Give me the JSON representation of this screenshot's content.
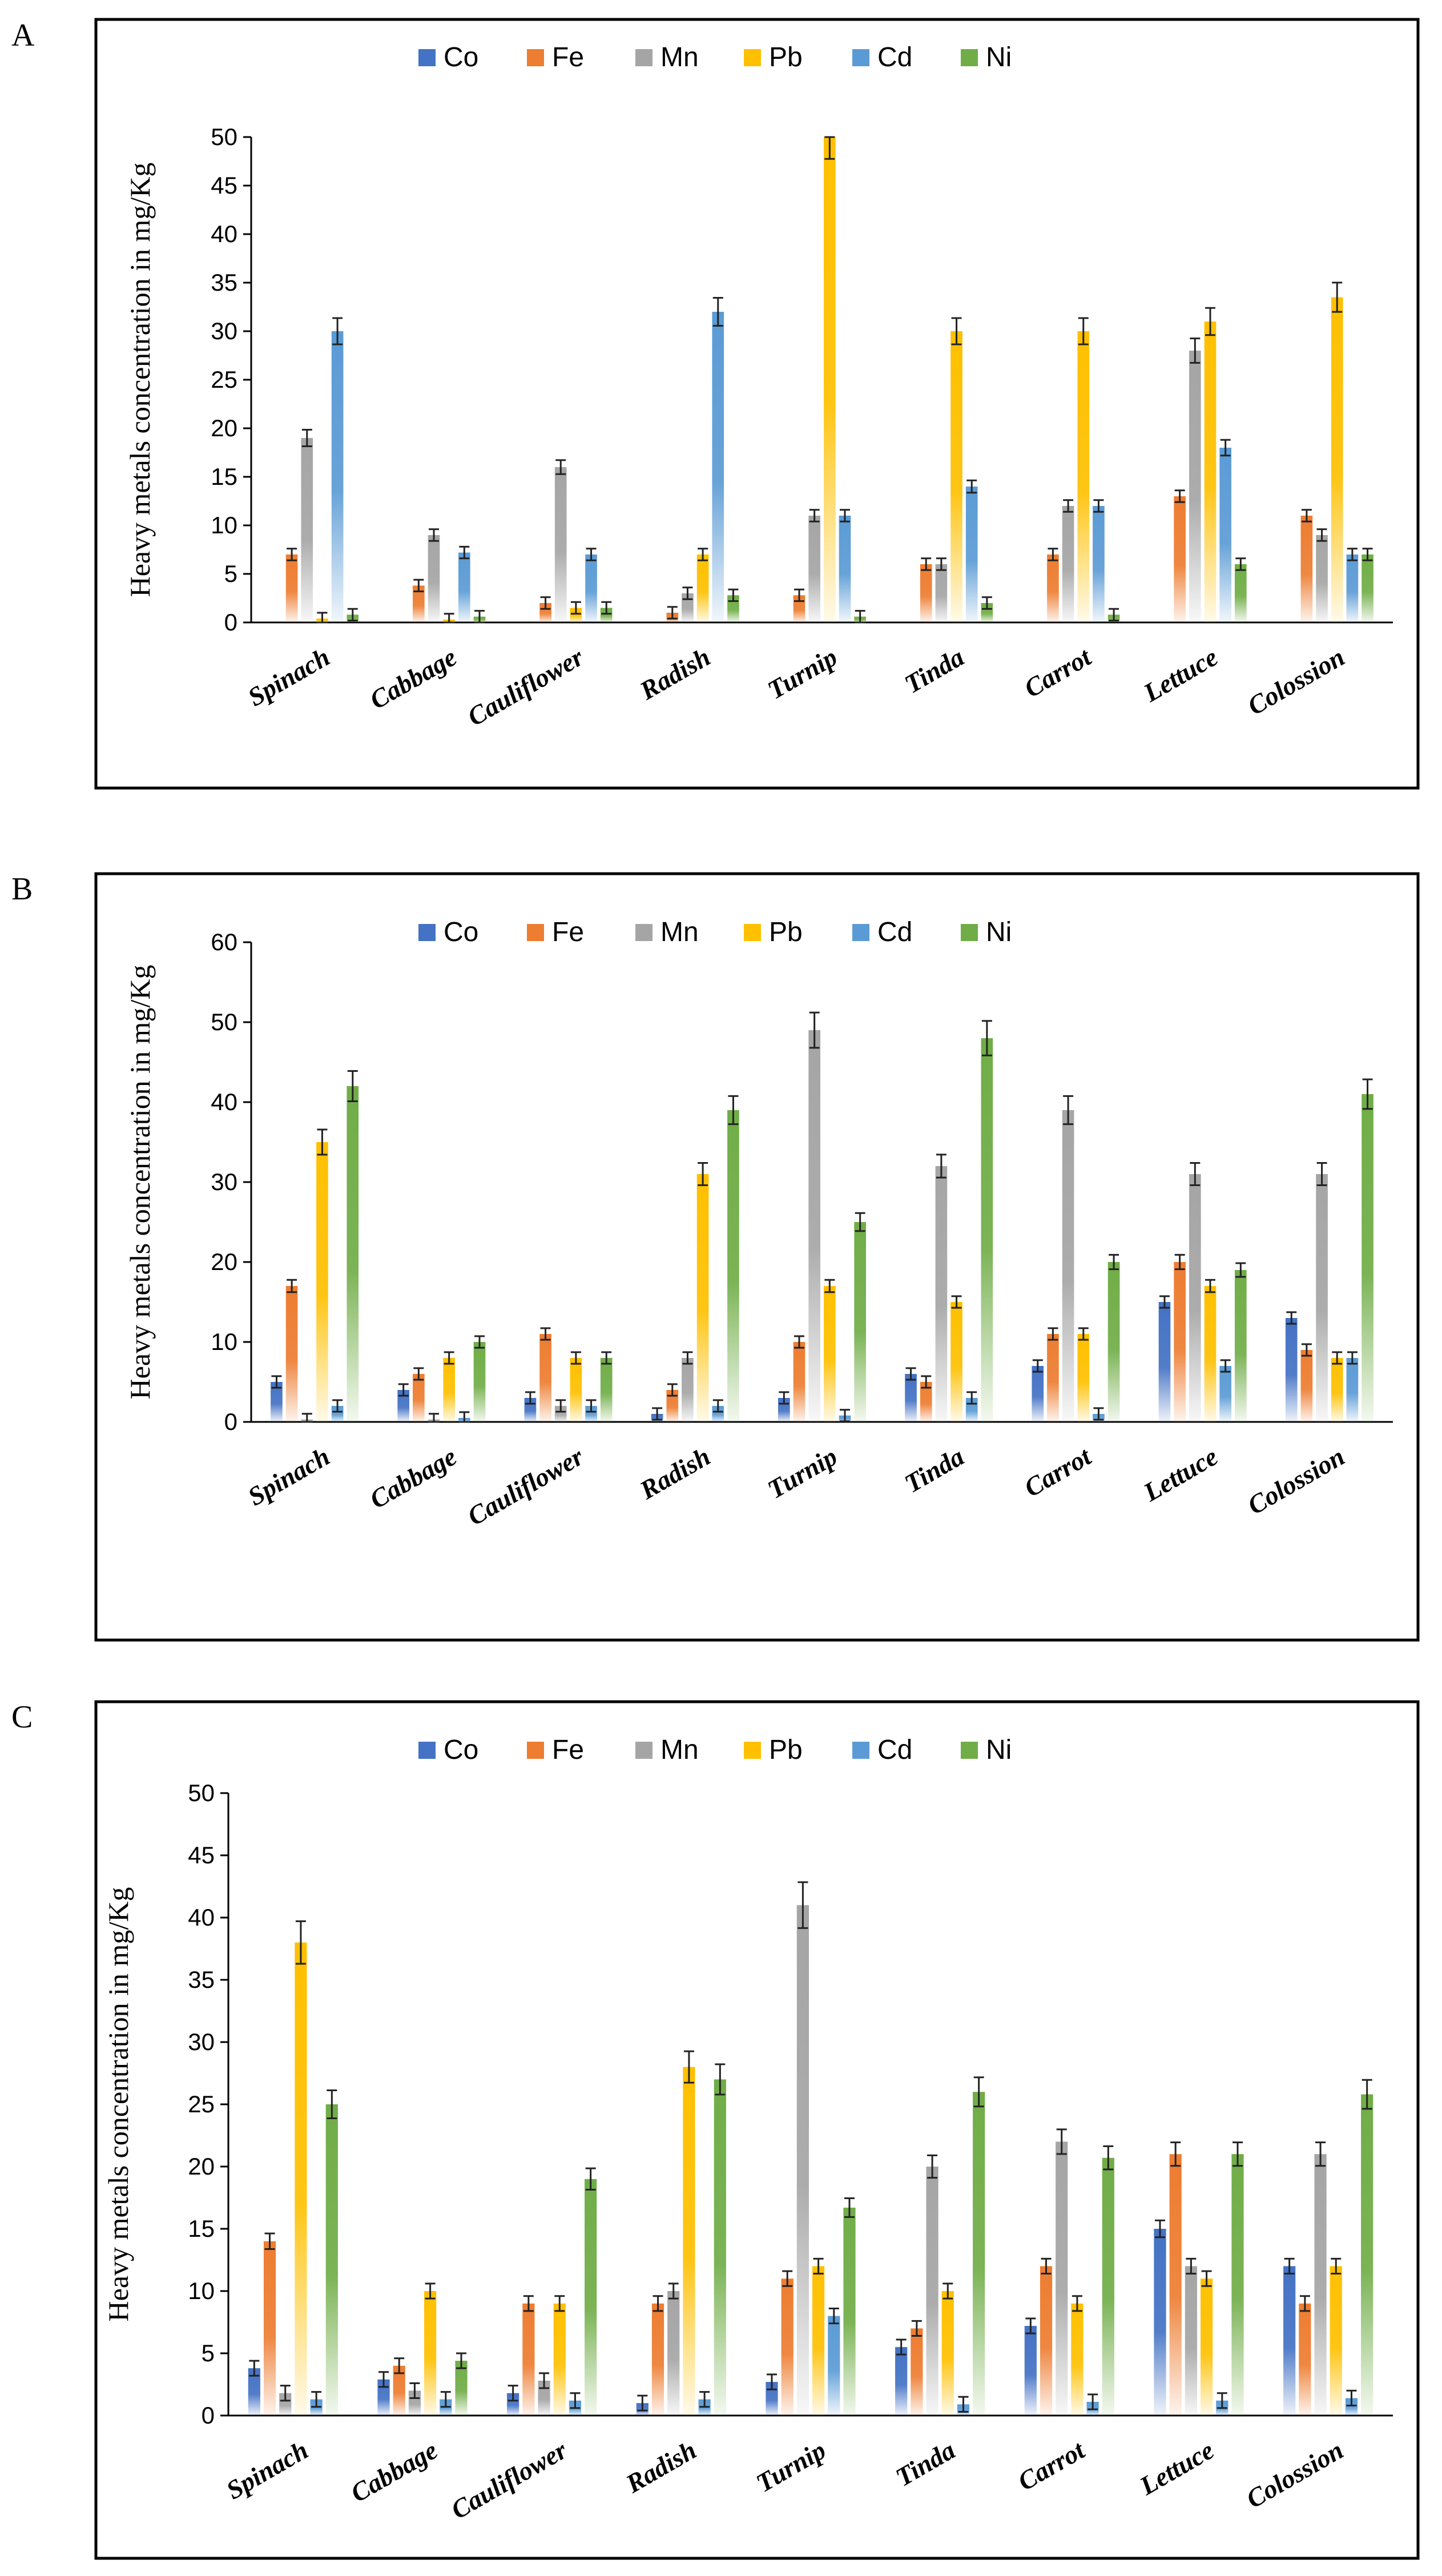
{
  "legend_colors": {
    "Co": "#4472c4",
    "Fe": "#ed7d31",
    "Mn": "#a5a5a5",
    "Pb": "#ffc000",
    "Cd": "#5b9bd5",
    "Ni": "#70ad47"
  },
  "chart_data": [
    {
      "panel": "A",
      "type": "bar",
      "ylabel": "Heavy metals concentration in mg/Kg",
      "ylim": [
        0,
        50
      ],
      "yticks": [
        "0",
        "5",
        "10",
        "15",
        "20",
        "25",
        "30",
        "35",
        "40",
        "45",
        "50"
      ],
      "categories": [
        "Spinach",
        "Cabbage",
        "Cauliflower",
        "Radish",
        "Turnip",
        "Tinda",
        "Carrot",
        "Lettuce",
        "Colossion"
      ],
      "series": [
        {
          "name": "Co",
          "values": [
            0,
            0,
            0,
            0,
            0,
            0,
            0,
            0,
            0
          ]
        },
        {
          "name": "Fe",
          "values": [
            7,
            3.8,
            2,
            1,
            2.8,
            6,
            7,
            13,
            11
          ]
        },
        {
          "name": "Mn",
          "values": [
            19,
            9,
            16,
            3,
            11,
            6,
            12,
            28,
            9
          ]
        },
        {
          "name": "Pb",
          "values": [
            0.4,
            0.3,
            1.5,
            7,
            50,
            30,
            30,
            31,
            33.5
          ]
        },
        {
          "name": "Cd",
          "values": [
            30,
            7.2,
            7,
            32,
            11,
            14,
            12,
            18,
            7
          ]
        },
        {
          "name": "Ni",
          "values": [
            0.8,
            0.6,
            1.5,
            2.8,
            0.6,
            2,
            0.8,
            6,
            7
          ]
        }
      ]
    },
    {
      "panel": "B",
      "type": "bar",
      "ylabel": "Heavy metals concentration in mg/Kg",
      "ylim": [
        0,
        60
      ],
      "yticks": [
        "0",
        "10",
        "20",
        "30",
        "40",
        "50",
        "60"
      ],
      "categories": [
        "Spinach",
        "Cabbage",
        "Cauliflower",
        "Radish",
        "Turnip",
        "Tinda",
        "Carrot",
        "Lettuce",
        "Colossion"
      ],
      "series": [
        {
          "name": "Co",
          "values": [
            5,
            4,
            3,
            1,
            3,
            6,
            7,
            15,
            13
          ]
        },
        {
          "name": "Fe",
          "values": [
            17,
            6,
            11,
            4,
            10,
            5,
            11,
            20,
            9
          ]
        },
        {
          "name": "Mn",
          "values": [
            0.3,
            0.3,
            2,
            8,
            49,
            32,
            39,
            31,
            31
          ]
        },
        {
          "name": "Pb",
          "values": [
            35,
            8,
            8,
            31,
            17,
            15,
            11,
            17,
            8
          ]
        },
        {
          "name": "Cd",
          "values": [
            2,
            0.5,
            2,
            2,
            0.8,
            3,
            1,
            7,
            8
          ]
        },
        {
          "name": "Ni",
          "values": [
            42,
            10,
            8,
            39,
            25,
            48,
            20,
            19,
            41
          ]
        }
      ]
    },
    {
      "panel": "C",
      "type": "bar",
      "ylabel": "Heavy metals concentration in mg/Kg",
      "ylim": [
        0,
        50
      ],
      "yticks": [
        "0",
        "5",
        "10",
        "15",
        "20",
        "25",
        "30",
        "35",
        "40",
        "45",
        "50"
      ],
      "categories": [
        "Spinach",
        "Cabbage",
        "Cauliflower",
        "Radish",
        "Turnip",
        "Tinda",
        "Carrot",
        "Lettuce",
        "Colossion"
      ],
      "series": [
        {
          "name": "Co",
          "values": [
            3.8,
            2.9,
            1.8,
            1,
            2.7,
            5.5,
            7.2,
            15,
            12
          ]
        },
        {
          "name": "Fe",
          "values": [
            14,
            4,
            9,
            9,
            11,
            7,
            12,
            21,
            9
          ]
        },
        {
          "name": "Mn",
          "values": [
            1.8,
            2,
            2.8,
            10,
            41,
            20,
            22,
            12,
            21
          ]
        },
        {
          "name": "Pb",
          "values": [
            38,
            10,
            9,
            28,
            12,
            10,
            9,
            11,
            12
          ]
        },
        {
          "name": "Cd",
          "values": [
            1.3,
            1.3,
            1.2,
            1.3,
            8,
            0.9,
            1.1,
            1.2,
            1.4
          ]
        },
        {
          "name": "Ni",
          "values": [
            25,
            4.4,
            19,
            27,
            16.7,
            26,
            20.7,
            21,
            25.8
          ]
        }
      ]
    }
  ]
}
